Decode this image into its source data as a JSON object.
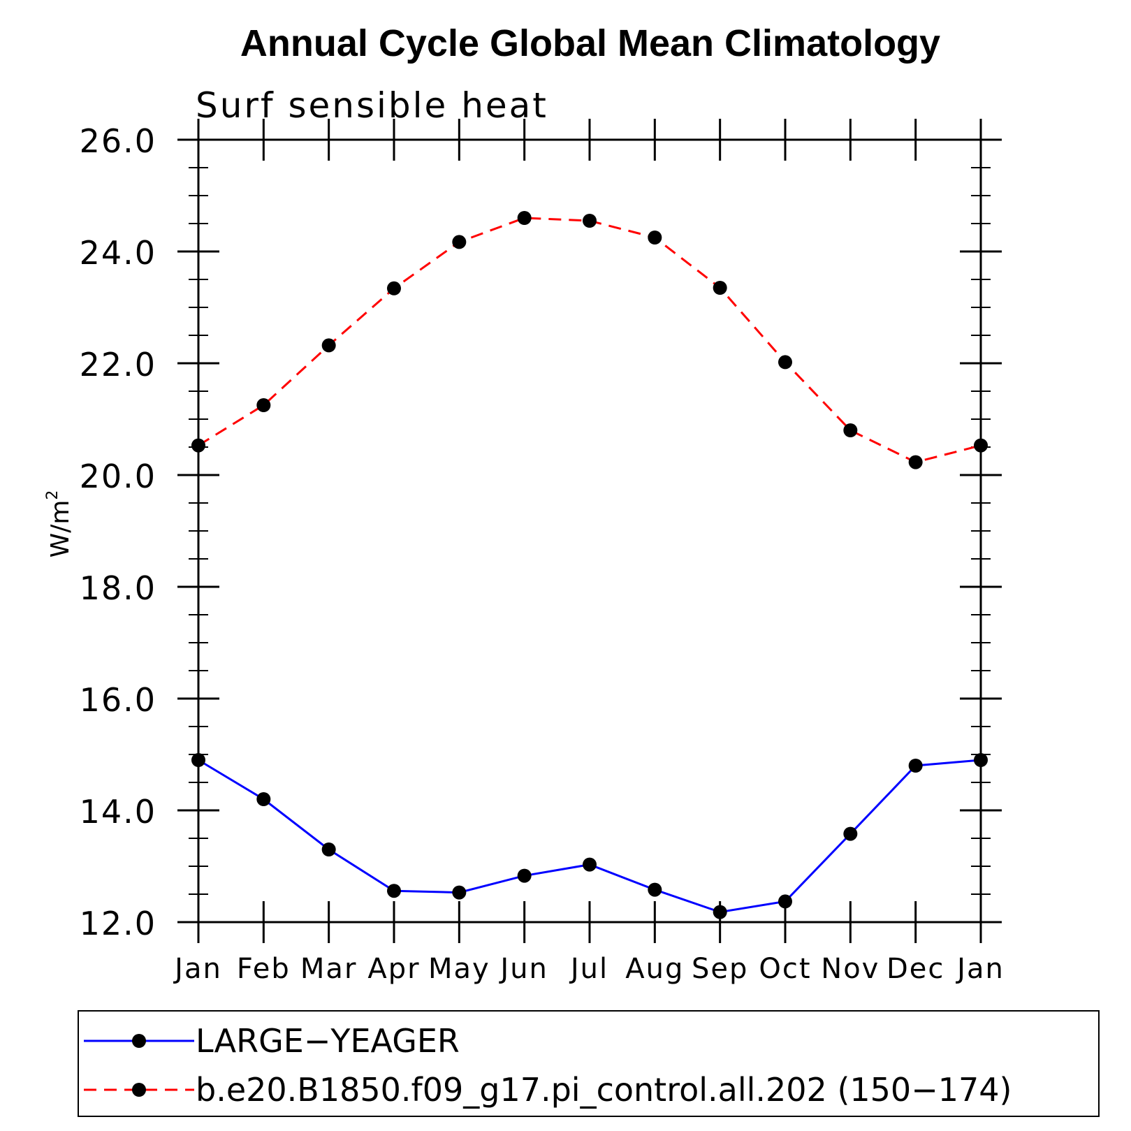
{
  "chart_data": {
    "type": "line",
    "title": "Annual Cycle Global Mean Climatology",
    "subtitle": "Surf sensible heat",
    "xlabel": "",
    "ylabel": "W/m",
    "ylabel_superscript": "2",
    "ylim": [
      12.0,
      26.0
    ],
    "yticks": [
      12.0,
      14.0,
      16.0,
      18.0,
      20.0,
      22.0,
      24.0,
      26.0
    ],
    "ytick_labels": [
      "12.0",
      "14.0",
      "16.0",
      "18.0",
      "20.0",
      "22.0",
      "24.0",
      "26.0"
    ],
    "categories": [
      "Jan",
      "Feb",
      "Mar",
      "Apr",
      "May",
      "Jun",
      "Jul",
      "Aug",
      "Sep",
      "Oct",
      "Nov",
      "Dec",
      "Jan"
    ],
    "grid": false,
    "legend_position": "bottom",
    "series": [
      {
        "name": "LARGE−YEAGER",
        "color": "#0000ff",
        "line_style": "solid",
        "marker": "circle",
        "values": [
          14.9,
          14.2,
          13.3,
          12.56,
          12.53,
          12.83,
          13.03,
          12.58,
          12.18,
          12.37,
          13.58,
          14.8,
          14.9
        ]
      },
      {
        "name": "b.e20.B1850.f09_g17.pi_control.all.202 (150−174)",
        "color": "#ff0000",
        "line_style": "dashed",
        "marker": "circle",
        "values": [
          20.53,
          21.25,
          22.32,
          23.34,
          24.17,
          24.6,
          24.55,
          24.25,
          23.35,
          22.02,
          20.8,
          20.23,
          20.53
        ]
      }
    ]
  }
}
